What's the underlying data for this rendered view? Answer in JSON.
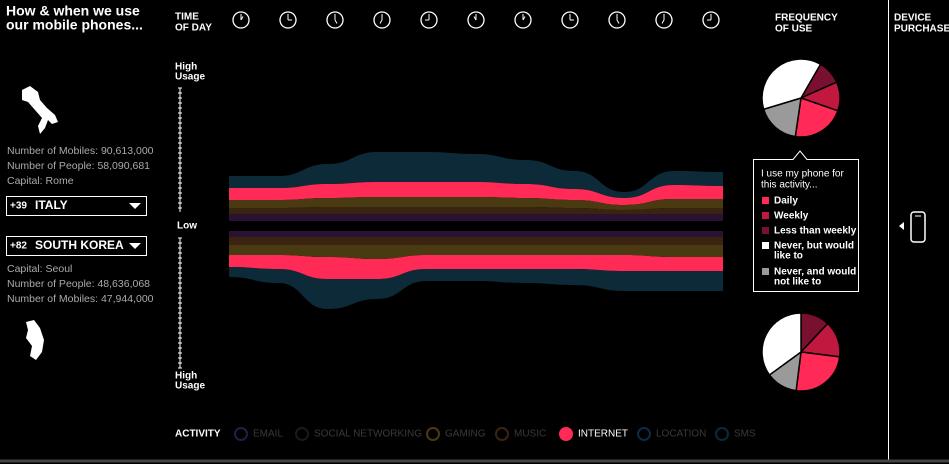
{
  "title": [
    "How & when we use",
    "our mobile phones..."
  ],
  "time_of_day": {
    "label": [
      "TIME",
      "OF DAY"
    ],
    "clock_count": 11
  },
  "usage_scale": {
    "top": [
      "High",
      "Usage"
    ],
    "middle": "Low",
    "bottom": [
      "High",
      "Usage"
    ]
  },
  "country_top": {
    "code": "+39",
    "name": "ITALY",
    "info": [
      "Number of Mobiles: 90,613,000",
      "Number of People: 58,090,681",
      "Capital: Rome"
    ]
  },
  "country_bottom": {
    "code": "+82",
    "name": "SOUTH KOREA",
    "info": [
      "Capital: Seoul",
      "Number of People: 48,636,068",
      "Number of Mobiles: 47,944,000"
    ]
  },
  "streams": {
    "top": [
      {
        "color": "#2a1232",
        "values": [
          7,
          7,
          7,
          7,
          7,
          7,
          7,
          7,
          7,
          7,
          7
        ]
      },
      {
        "color": "#3a2410",
        "values": [
          6,
          6,
          7,
          7,
          7,
          7,
          7,
          6,
          4,
          6,
          6
        ]
      },
      {
        "color": "#4a3a12",
        "values": [
          8,
          8,
          9,
          10,
          10,
          10,
          9,
          8,
          5,
          9,
          9
        ]
      },
      {
        "color": "#ff2a55",
        "values": [
          12,
          12,
          14,
          15,
          15,
          15,
          14,
          11,
          7,
          14,
          13
        ]
      },
      {
        "color": "#0d2a38",
        "values": [
          12,
          12,
          20,
          30,
          30,
          28,
          24,
          18,
          6,
          14,
          14
        ]
      }
    ],
    "bottom": [
      {
        "color": "#2a1232",
        "values": [
          6,
          6,
          6,
          6,
          6,
          6,
          6,
          6,
          6,
          6,
          6
        ]
      },
      {
        "color": "#3a2410",
        "values": [
          8,
          8,
          8,
          8,
          8,
          8,
          8,
          8,
          8,
          8,
          8
        ]
      },
      {
        "color": "#4a3a12",
        "values": [
          10,
          10,
          12,
          14,
          10,
          10,
          10,
          10,
          10,
          12,
          12
        ]
      },
      {
        "color": "#ff2a55",
        "values": [
          12,
          14,
          22,
          20,
          14,
          14,
          14,
          14,
          16,
          14,
          14
        ]
      },
      {
        "color": "#0d2a38",
        "values": [
          10,
          14,
          30,
          20,
          12,
          12,
          14,
          16,
          20,
          20,
          20
        ]
      }
    ]
  },
  "frequency": {
    "label": [
      "FREQUENCY",
      "OF USE"
    ],
    "tooltip_heading": [
      "I use my phone for",
      "this activity..."
    ],
    "legend": [
      {
        "label": [
          "Daily"
        ],
        "color": "#ff2a55"
      },
      {
        "label": [
          "Weekly"
        ],
        "color": "#c0183f"
      },
      {
        "label": [
          "Less than weekly"
        ],
        "color": "#7a1030"
      },
      {
        "label": [
          "Never, but would",
          "like to"
        ],
        "color": "#ffffff"
      },
      {
        "label": [
          "Never, and would",
          "not like to"
        ],
        "color": "#9a9a9a"
      }
    ],
    "pie_top": [
      22,
      12,
      10,
      38,
      18
    ],
    "pie_bottom": [
      25,
      15,
      12,
      35,
      13
    ]
  },
  "device_purchase": [
    "DEVICE",
    "PURCHASE"
  ],
  "activity": {
    "label": "ACTIVITY",
    "items": [
      {
        "label": "EMAIL",
        "color": "#2a1a4a",
        "active": false
      },
      {
        "label": "SOCIAL NETWORKING",
        "color": "#1a1a1a",
        "active": false
      },
      {
        "label": "GAMING",
        "color": "#4a3a12",
        "active": false
      },
      {
        "label": "MUSIC",
        "color": "#3a2410",
        "active": false
      },
      {
        "label": "INTERNET",
        "color": "#ff2a55",
        "active": true
      },
      {
        "label": "LOCATION",
        "color": "#0d2a4a",
        "active": false
      },
      {
        "label": "SMS",
        "color": "#0d2a38",
        "active": false
      }
    ]
  }
}
